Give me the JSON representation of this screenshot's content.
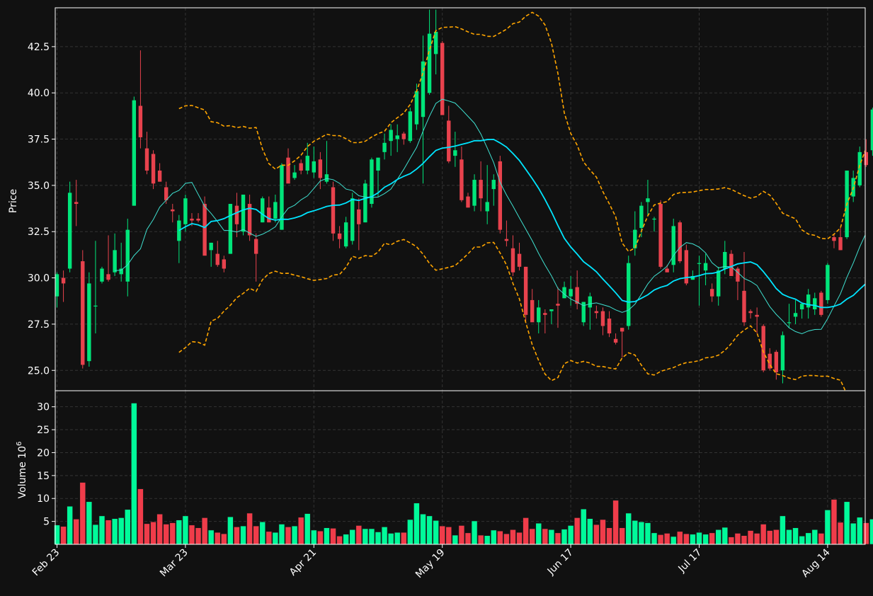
{
  "chart_data": {
    "type": "candlestick",
    "colors": {
      "background": "#111111",
      "grid": "#333333",
      "up": "#00e57a",
      "down": "#e8424d",
      "volume_up": "#00fa9a",
      "volume_down": "#f03c4a",
      "ma_fast": "#3fe0d0",
      "ma_slow": "#00e5ff",
      "bollinger": "#ffa500",
      "text": "#ffffff"
    },
    "price_panel": {
      "ylabel": "Price",
      "ylim": [
        23.9,
        44.6
      ],
      "yticks": [
        "25.0",
        "27.5",
        "30.0",
        "32.5",
        "35.0",
        "37.5",
        "40.0",
        "42.5"
      ],
      "ytick_values": [
        25.0,
        27.5,
        30.0,
        32.5,
        35.0,
        37.5,
        40.0,
        42.5
      ]
    },
    "volume_panel": {
      "ylabel": "Volume",
      "ylabel_exponent": "6",
      "ylim": [
        0,
        33.5
      ],
      "yticks": [
        "5",
        "10",
        "15",
        "20",
        "25",
        "30"
      ],
      "ytick_values": [
        5,
        10,
        15,
        20,
        25,
        30
      ]
    },
    "xticks": [
      {
        "label": "Feb 23",
        "index": 0
      },
      {
        "label": "Mar 23",
        "index": 20
      },
      {
        "label": "Apr 21",
        "index": 40
      },
      {
        "label": "May 19",
        "index": 60
      },
      {
        "label": "Jun 17",
        "index": 80
      },
      {
        "label": "Jul 17",
        "index": 100
      },
      {
        "label": "Aug 14",
        "index": 120
      }
    ],
    "series_ohlcv": [
      [
        29.0,
        30.3,
        28.4,
        30.2,
        4.2
      ],
      [
        30.0,
        30.4,
        28.7,
        29.7,
        3.9
      ],
      [
        30.5,
        35.2,
        30.3,
        34.6,
        8.3
      ],
      [
        34.1,
        35.3,
        32.8,
        34.0,
        5.5
      ],
      [
        30.9,
        31.5,
        25.1,
        25.3,
        13.5
      ],
      [
        25.5,
        30.3,
        25.2,
        29.7,
        9.3
      ],
      [
        28.5,
        32.0,
        27.0,
        28.5,
        4.3
      ],
      [
        29.8,
        30.6,
        29.7,
        30.5,
        6.2
      ],
      [
        30.2,
        32.3,
        29.8,
        29.9,
        5.3
      ],
      [
        30.3,
        32.4,
        30.1,
        31.5,
        5.6
      ],
      [
        30.2,
        31.9,
        29.8,
        30.5,
        5.8
      ],
      [
        29.8,
        33.2,
        29.0,
        32.6,
        7.6
      ],
      [
        33.9,
        39.8,
        33.9,
        39.6,
        30.8
      ],
      [
        39.3,
        42.3,
        37.0,
        37.6,
        12.1
      ],
      [
        37.0,
        37.9,
        35.6,
        35.8,
        4.5
      ],
      [
        36.7,
        36.9,
        34.8,
        35.1,
        4.9
      ],
      [
        35.8,
        36.2,
        35.2,
        35.2,
        6.6
      ],
      [
        34.9,
        35.2,
        34.0,
        34.2,
        4.4
      ],
      [
        33.7,
        34.0,
        33.0,
        33.6,
        4.7
      ],
      [
        32.0,
        33.4,
        30.8,
        33.1,
        5.3
      ],
      [
        32.9,
        34.5,
        32.5,
        34.3,
        6.2
      ],
      [
        33.2,
        33.5,
        32.8,
        33.1,
        4.2
      ],
      [
        33.2,
        33.5,
        33.0,
        33.1,
        3.6
      ],
      [
        34.0,
        34.4,
        31.8,
        31.2,
        5.8
      ],
      [
        31.5,
        31.9,
        30.6,
        31.9,
        3.1
      ],
      [
        31.3,
        32.0,
        30.6,
        30.7,
        2.6
      ],
      [
        31.0,
        31.2,
        30.3,
        30.5,
        2.3
      ],
      [
        31.3,
        34.0,
        31.3,
        34.0,
        6.0
      ],
      [
        33.9,
        34.6,
        32.2,
        32.9,
        3.8
      ],
      [
        32.5,
        34.5,
        32.3,
        34.5,
        4.0
      ],
      [
        34.0,
        34.5,
        32.0,
        32.3,
        6.8
      ],
      [
        32.1,
        32.4,
        29.8,
        31.3,
        4.0
      ],
      [
        33.0,
        34.4,
        33.0,
        34.3,
        4.9
      ],
      [
        33.8,
        34.4,
        33.0,
        33.0,
        2.8
      ],
      [
        33.2,
        34.5,
        33.0,
        34.1,
        2.6
      ],
      [
        32.6,
        36.2,
        32.6,
        36.1,
        4.4
      ],
      [
        36.5,
        37.0,
        35.2,
        35.1,
        3.8
      ],
      [
        35.4,
        36.1,
        35.3,
        35.7,
        4.0
      ],
      [
        36.2,
        36.4,
        35.6,
        35.8,
        5.9
      ],
      [
        35.8,
        37.3,
        35.6,
        36.6,
        6.7
      ],
      [
        35.7,
        37.1,
        35.4,
        36.3,
        3.1
      ],
      [
        36.4,
        36.8,
        34.8,
        35.4,
        2.9
      ],
      [
        35.2,
        37.4,
        35.1,
        35.6,
        3.6
      ],
      [
        34.9,
        35.2,
        32.0,
        32.4,
        3.5
      ],
      [
        32.4,
        32.8,
        31.6,
        32.1,
        1.8
      ],
      [
        31.7,
        33.3,
        31.6,
        33.0,
        2.2
      ],
      [
        32.0,
        34.6,
        31.8,
        34.3,
        3.2
      ],
      [
        33.7,
        34.3,
        31.5,
        32.9,
        4.1
      ],
      [
        33.0,
        35.3,
        33.0,
        35.1,
        3.4
      ],
      [
        34.0,
        36.5,
        33.8,
        36.4,
        3.4
      ],
      [
        35.8,
        36.4,
        34.4,
        36.5,
        2.7
      ],
      [
        36.8,
        37.8,
        36.4,
        37.3,
        3.8
      ],
      [
        37.4,
        38.3,
        36.6,
        38.0,
        2.4
      ],
      [
        37.5,
        38.3,
        36.8,
        37.7,
        2.6
      ],
      [
        37.8,
        37.9,
        37.2,
        37.5,
        2.6
      ],
      [
        37.4,
        39.2,
        37.3,
        39.0,
        5.4
      ],
      [
        38.3,
        40.5,
        38.0,
        40.1,
        9.0
      ],
      [
        38.7,
        43.1,
        35.1,
        41.7,
        6.6
      ],
      [
        40.0,
        44.5,
        39.9,
        43.2,
        6.2
      ],
      [
        42.1,
        44.5,
        41.0,
        43.3,
        5.2
      ],
      [
        42.7,
        42.8,
        39.4,
        38.8,
        4.0
      ],
      [
        38.5,
        39.3,
        36.2,
        36.3,
        3.8
      ],
      [
        36.6,
        37.9,
        36.0,
        36.9,
        2.0
      ],
      [
        36.4,
        37.1,
        34.1,
        34.2,
        4.1
      ],
      [
        34.4,
        34.6,
        33.8,
        33.8,
        2.5
      ],
      [
        33.9,
        35.6,
        33.6,
        35.3,
        5.1
      ],
      [
        35.3,
        36.3,
        33.6,
        34.3,
        2.0
      ],
      [
        33.6,
        36.1,
        32.9,
        34.1,
        1.9
      ],
      [
        34.8,
        35.6,
        33.9,
        35.3,
        3.1
      ],
      [
        36.3,
        36.6,
        32.4,
        32.6,
        2.9
      ],
      [
        32.1,
        33.1,
        31.7,
        32.0,
        2.3
      ],
      [
        31.6,
        32.3,
        30.1,
        30.3,
        3.2
      ],
      [
        31.3,
        31.9,
        30.4,
        30.6,
        2.6
      ],
      [
        30.6,
        30.6,
        27.6,
        28.0,
        5.8
      ],
      [
        28.8,
        29.4,
        27.7,
        27.6,
        3.4
      ],
      [
        27.6,
        28.8,
        27.0,
        28.4,
        4.6
      ],
      [
        28.1,
        28.3,
        27.0,
        28.0,
        3.4
      ],
      [
        28.2,
        28.2,
        27.5,
        28.3,
        3.2
      ],
      [
        28.6,
        29.5,
        27.3,
        28.5,
        2.5
      ],
      [
        28.9,
        29.8,
        28.9,
        29.5,
        3.3
      ],
      [
        29.0,
        30.1,
        28.5,
        29.4,
        4.1
      ],
      [
        29.5,
        30.4,
        28.3,
        28.6,
        5.8
      ],
      [
        27.6,
        28.7,
        27.4,
        28.7,
        7.7
      ],
      [
        28.4,
        29.2,
        27.2,
        29.0,
        5.6
      ],
      [
        28.2,
        28.5,
        27.8,
        28.1,
        4.3
      ],
      [
        28.2,
        28.4,
        26.9,
        27.4,
        5.4
      ],
      [
        27.8,
        28.2,
        26.8,
        27.0,
        3.6
      ],
      [
        26.7,
        27.0,
        26.4,
        26.5,
        9.6
      ],
      [
        27.3,
        27.3,
        25.7,
        27.1,
        3.6
      ],
      [
        27.4,
        31.2,
        27.2,
        30.8,
        6.8
      ],
      [
        31.6,
        33.6,
        31.2,
        32.6,
        5.2
      ],
      [
        32.7,
        34.1,
        32.2,
        33.9,
        4.9
      ],
      [
        34.1,
        35.3,
        33.4,
        34.3,
        4.7
      ],
      [
        33.2,
        33.3,
        32.5,
        33.2,
        2.5
      ],
      [
        34.0,
        34.2,
        30.5,
        30.6,
        2.1
      ],
      [
        30.5,
        30.7,
        30.3,
        30.3,
        2.4
      ],
      [
        30.7,
        33.2,
        30.3,
        32.8,
        1.7
      ],
      [
        33.0,
        33.1,
        30.8,
        30.9,
        2.8
      ],
      [
        31.5,
        31.8,
        29.6,
        29.7,
        2.3
      ],
      [
        29.9,
        30.4,
        29.9,
        30.1,
        2.2
      ],
      [
        30.8,
        31.2,
        28.5,
        30.8,
        2.6
      ],
      [
        30.4,
        31.3,
        29.6,
        30.8,
        2.2
      ],
      [
        29.4,
        29.7,
        28.7,
        29.0,
        2.5
      ],
      [
        29.0,
        30.6,
        28.5,
        30.4,
        3.2
      ],
      [
        30.5,
        32.0,
        30.2,
        31.4,
        3.7
      ],
      [
        31.3,
        31.5,
        30.1,
        30.1,
        1.6
      ],
      [
        30.5,
        30.6,
        28.8,
        29.8,
        2.4
      ],
      [
        29.3,
        31.4,
        27.4,
        27.6,
        1.9
      ],
      [
        28.2,
        28.3,
        27.8,
        28.1,
        3.0
      ],
      [
        28.0,
        28.4,
        27.0,
        27.9,
        2.4
      ],
      [
        27.4,
        27.5,
        24.9,
        25.0,
        4.4
      ],
      [
        25.9,
        26.2,
        25.0,
        25.1,
        3.0
      ],
      [
        26.0,
        26.1,
        24.5,
        24.9,
        3.2
      ],
      [
        25.0,
        27.1,
        24.3,
        26.9,
        6.2
      ],
      [
        27.6,
        28.6,
        27.3,
        27.6,
        3.2
      ],
      [
        27.9,
        28.8,
        27.5,
        28.1,
        3.6
      ],
      [
        28.3,
        28.6,
        27.8,
        28.6,
        1.8
      ],
      [
        28.4,
        29.4,
        27.8,
        29.1,
        2.5
      ],
      [
        28.3,
        29.2,
        28.0,
        28.9,
        3.2
      ],
      [
        29.2,
        29.3,
        27.9,
        28.0,
        2.4
      ],
      [
        28.8,
        30.8,
        28.6,
        30.7,
        7.5
      ],
      [
        32.2,
        32.4,
        31.6,
        32.0,
        9.8
      ],
      [
        32.2,
        32.7,
        31.5,
        31.5,
        4.8
      ],
      [
        32.2,
        35.8,
        32.1,
        35.8,
        9.3
      ],
      [
        34.4,
        35.8,
        34.1,
        35.4,
        4.6
      ],
      [
        35.0,
        37.1,
        34.9,
        36.8,
        5.9
      ],
      [
        36.8,
        37.5,
        36.0,
        36.1,
        4.7
      ],
      [
        36.9,
        39.2,
        36.6,
        39.1,
        5.5
      ]
    ]
  }
}
